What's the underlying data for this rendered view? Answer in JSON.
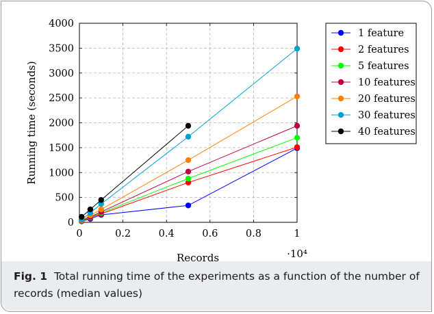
{
  "caption": {
    "figure_label": "Fig. 1",
    "text": "Total running time of the experiments as a function of the number of records (median values)"
  },
  "chart_data": {
    "type": "line",
    "xlabel": "Records",
    "ylabel": "Running time (seconds)",
    "x_multiplier_label": "·10⁴",
    "x_scale_factor": 10000,
    "xlim": [
      0,
      10000
    ],
    "ylim": [
      0,
      4000
    ],
    "x_ticks": [
      0,
      2000,
      4000,
      6000,
      8000,
      10000
    ],
    "x_tick_labels": [
      "0",
      "0.2",
      "0.4",
      "0.6",
      "0.8",
      "1"
    ],
    "y_ticks": [
      0,
      500,
      1000,
      1500,
      2000,
      2500,
      3000,
      3500,
      4000
    ],
    "y_tick_labels": [
      "0",
      "500",
      "1000",
      "1500",
      "2000",
      "2500",
      "3000",
      "3500",
      "4000"
    ],
    "grid": true,
    "legend_position": "top-right",
    "series": [
      {
        "name": "1 feature",
        "color": "#0000ff",
        "x": [
          100,
          500,
          1000,
          5000,
          10000
        ],
        "y": [
          20,
          70,
          150,
          340,
          1490
        ]
      },
      {
        "name": "2 features",
        "color": "#ff0000",
        "x": [
          100,
          500,
          1000,
          5000,
          10000
        ],
        "y": [
          25,
          90,
          170,
          800,
          1510
        ]
      },
      {
        "name": "5 features",
        "color": "#00ff00",
        "x": [
          100,
          500,
          1000,
          5000,
          10000
        ],
        "y": [
          30,
          100,
          190,
          880,
          1700
        ]
      },
      {
        "name": "10 features",
        "color": "#bf0040",
        "x": [
          100,
          500,
          1000,
          5000,
          10000
        ],
        "y": [
          35,
          110,
          210,
          1020,
          1940
        ]
      },
      {
        "name": "20 features",
        "color": "#ff8000",
        "x": [
          100,
          500,
          1000,
          5000,
          10000
        ],
        "y": [
          45,
          140,
          260,
          1250,
          2530
        ]
      },
      {
        "name": "30 features",
        "color": "#00a0d0",
        "x": [
          100,
          500,
          1000,
          5000,
          10000
        ],
        "y": [
          60,
          190,
          370,
          1720,
          3490
        ]
      },
      {
        "name": "40 features",
        "color": "#000000",
        "x": [
          100,
          500,
          1000,
          5000
        ],
        "y": [
          110,
          260,
          450,
          1940
        ]
      }
    ]
  }
}
